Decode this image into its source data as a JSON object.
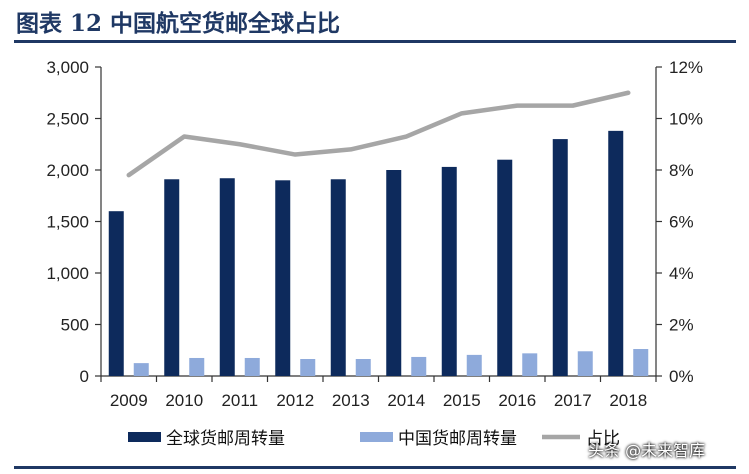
{
  "header": {
    "title": "图表 12    中国航空货邮全球占比"
  },
  "chart_data": {
    "type": "bar",
    "categories": [
      "2009",
      "2010",
      "2011",
      "2012",
      "2013",
      "2014",
      "2015",
      "2016",
      "2017",
      "2018"
    ],
    "series": [
      {
        "name": "全球货邮周转量",
        "type": "bar",
        "axis": "left",
        "color": "#0d2a5c",
        "values": [
          1600,
          1910,
          1920,
          1900,
          1910,
          2000,
          2030,
          2100,
          2300,
          2380
        ]
      },
      {
        "name": "中国货邮周转量",
        "type": "bar",
        "axis": "left",
        "color": "#8eaadb",
        "values": [
          125,
          175,
          175,
          165,
          165,
          185,
          205,
          220,
          240,
          262
        ]
      },
      {
        "name": "占比",
        "type": "line",
        "axis": "right",
        "color": "#a6a6a6",
        "values": [
          7.8,
          9.3,
          9.0,
          8.6,
          8.8,
          9.3,
          10.2,
          10.5,
          10.5,
          11.0
        ]
      }
    ],
    "y_left": {
      "min": 0,
      "max": 3000,
      "ticks": [
        "0",
        "500",
        "1,000",
        "1,500",
        "2,000",
        "2,500",
        "3,000"
      ]
    },
    "y_right": {
      "min": 0,
      "max": 12,
      "ticks": [
        "0%",
        "2%",
        "4%",
        "6%",
        "8%",
        "10%",
        "12%"
      ]
    },
    "title": "",
    "legend": {
      "position": "bottom"
    },
    "grid": false
  },
  "watermark": "头条 @未来智库"
}
